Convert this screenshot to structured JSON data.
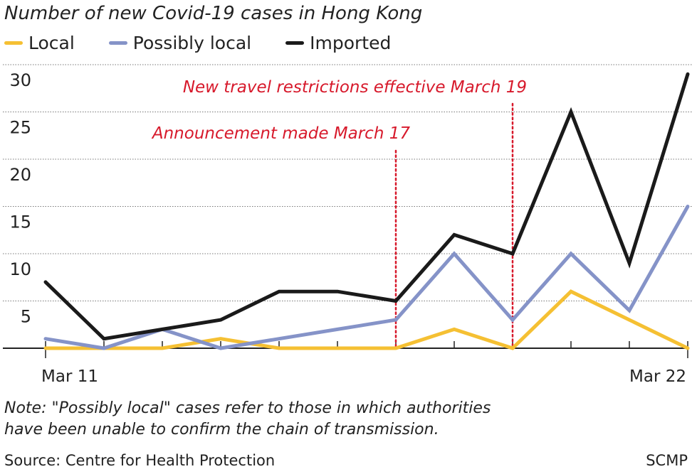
{
  "chart_data": {
    "type": "line",
    "title": "Number of new Covid-19 cases in Hong Kong",
    "x": [
      "Mar 11",
      "Mar 12",
      "Mar 13",
      "Mar 14",
      "Mar 15",
      "Mar 16",
      "Mar 17",
      "Mar 18",
      "Mar 19",
      "Mar 20",
      "Mar 21",
      "Mar 22"
    ],
    "x_tick_labels": [
      "Mar 11",
      "Mar 22"
    ],
    "series": [
      {
        "name": "Local",
        "color": "#f5c033",
        "values": [
          0,
          0,
          0,
          1,
          0,
          0,
          0,
          2,
          0,
          6,
          3,
          0
        ]
      },
      {
        "name": "Possibly local",
        "color": "#8593c8",
        "values": [
          1,
          0,
          2,
          0,
          1,
          2,
          3,
          10,
          3,
          10,
          4,
          15
        ]
      },
      {
        "name": "Imported",
        "color": "#1a1a1a",
        "values": [
          7,
          1,
          2,
          3,
          6,
          6,
          5,
          12,
          10,
          25,
          9,
          29
        ]
      }
    ],
    "ylim": [
      0,
      30
    ],
    "yticks": [
      5,
      10,
      15,
      20,
      25,
      30
    ],
    "grid": true,
    "legend_position": "top-left",
    "annotations": [
      {
        "text": "Announcement made March 17",
        "x": "Mar 17",
        "color": "#d7192b"
      },
      {
        "text": "New travel restrictions effective March 19",
        "x": "Mar 19",
        "color": "#d7192b"
      }
    ]
  },
  "note": "Note: \"Possibly local\" cases refer to those in which authorities",
  "note_line2": "have been unable to confirm the chain of transmission.",
  "source": "Source: Centre for Health Protection",
  "brand": "SCMP"
}
